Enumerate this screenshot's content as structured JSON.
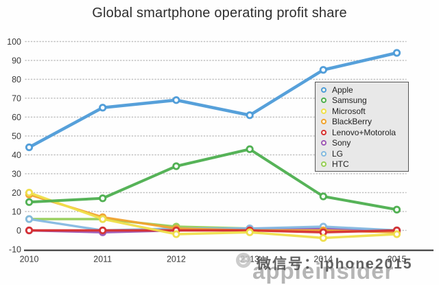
{
  "chart_data": {
    "type": "line",
    "title": "Global smartphone operating profit share",
    "x_labels": [
      "2010",
      "2011",
      "2012",
      "2013",
      "2014",
      "2015"
    ],
    "yticks": [
      100,
      90,
      80,
      70,
      60,
      50,
      40,
      30,
      20,
      10,
      0,
      -10
    ],
    "ylim": [
      -10,
      100
    ],
    "grid": "dotted-horizontal",
    "legend_position": "upper-right",
    "series": [
      {
        "name": "Apple",
        "color": "#4d9bd8",
        "values": [
          44,
          65,
          69,
          61,
          85,
          94
        ]
      },
      {
        "name": "Samsung",
        "color": "#4daf4f",
        "values": [
          15,
          17,
          34,
          43,
          18,
          11
        ]
      },
      {
        "name": "Microsoft",
        "color": "#efdf4a",
        "values": [
          20,
          6,
          -2,
          -1,
          -4,
          -2
        ]
      },
      {
        "name": "BlackBerry",
        "color": "#f0a230",
        "values": [
          19,
          7,
          1,
          0,
          0,
          -1
        ]
      },
      {
        "name": "Lenovo+Motorola",
        "color": "#d63032",
        "values": [
          0,
          0,
          0,
          0,
          -1,
          0
        ]
      },
      {
        "name": "Sony",
        "color": "#9c59b8",
        "values": [
          0,
          -1,
          0,
          1,
          1,
          0
        ]
      },
      {
        "name": "LG",
        "color": "#85b9e2",
        "values": [
          6,
          0,
          1,
          1,
          2,
          0
        ]
      },
      {
        "name": "HTC",
        "color": "#95ce58",
        "values": [
          6,
          6,
          2,
          1,
          1,
          0
        ]
      }
    ]
  },
  "watermark": {
    "wechat_label": "微信号：iphone2015",
    "brand": "appleinsider",
    "logo": "wechat-logo"
  }
}
